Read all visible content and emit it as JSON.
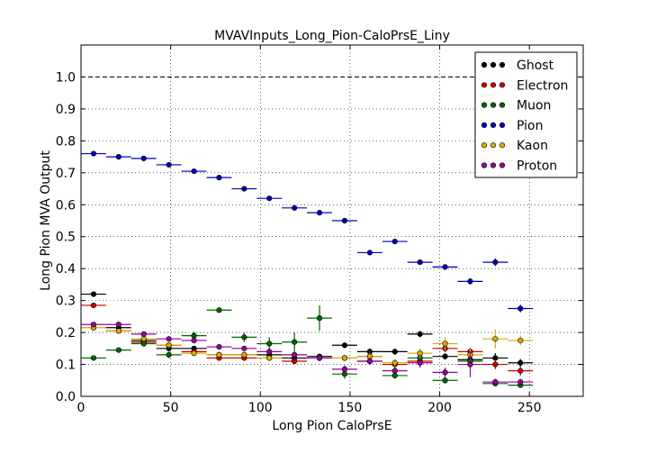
{
  "chart_data": {
    "type": "scatter",
    "title": "MVAVInputs_Long_Pion-CaloPrsE_Liny",
    "xlabel": "Long Pion CaloPrsE",
    "ylabel": "Long Pion MVA Output",
    "xlim": [
      0,
      280
    ],
    "ylim": [
      0,
      1.1
    ],
    "xticks": [
      0,
      50,
      100,
      150,
      200,
      250
    ],
    "xtick_labels": [
      "0",
      "50",
      "100",
      "150",
      "200",
      "250"
    ],
    "yticks": [
      0.0,
      0.1,
      0.2,
      0.3,
      0.4,
      0.5,
      0.6,
      0.7,
      0.8,
      0.9,
      1.0
    ],
    "ytick_labels": [
      "0.0",
      "0.1",
      "0.2",
      "0.3",
      "0.4",
      "0.5",
      "0.6",
      "0.7",
      "0.8",
      "0.9",
      "1.0"
    ],
    "grid": true,
    "legend_position": "top-right",
    "reference_line_y": 1.0,
    "bin_half_width": 7,
    "x": [
      7,
      21,
      35,
      49,
      63,
      77,
      91,
      105,
      119,
      133,
      147,
      161,
      175,
      189,
      203,
      217,
      231,
      245
    ],
    "series": [
      {
        "name": "Ghost",
        "color": "#000000",
        "values": [
          0.32,
          0.215,
          0.175,
          0.15,
          0.15,
          0.13,
          0.13,
          0.13,
          0.12,
          0.125,
          0.16,
          0.14,
          0.14,
          0.195,
          0.125,
          0.115,
          0.12,
          0.105
        ],
        "errors": [
          0.006,
          0.006,
          0.006,
          0.006,
          0.008,
          0.008,
          0.008,
          0.008,
          0.008,
          0.008,
          0.008,
          0.01,
          0.01,
          0.01,
          0.01,
          0.012,
          0.015,
          0.012
        ]
      },
      {
        "name": "Electron",
        "color": "#cc0000",
        "values": [
          0.285,
          0.205,
          0.17,
          0.16,
          0.14,
          0.12,
          0.12,
          0.12,
          0.11,
          0.12,
          0.12,
          0.11,
          0.1,
          0.11,
          0.15,
          0.14,
          0.1,
          0.08
        ],
        "errors": [
          0.006,
          0.006,
          0.006,
          0.006,
          0.008,
          0.008,
          0.008,
          0.008,
          0.008,
          0.008,
          0.008,
          0.01,
          0.01,
          0.01,
          0.012,
          0.012,
          0.015,
          0.015
        ]
      },
      {
        "name": "Muon",
        "color": "#006600",
        "values": [
          0.12,
          0.145,
          0.165,
          0.13,
          0.19,
          0.27,
          0.185,
          0.165,
          0.17,
          0.245,
          0.07,
          0.125,
          0.065,
          0.12,
          0.05,
          0.11,
          0.04,
          0.035
        ],
        "errors": [
          0.006,
          0.006,
          0.008,
          0.01,
          0.012,
          0.008,
          0.015,
          0.02,
          0.03,
          0.04,
          0.015,
          0.02,
          0.01,
          0.015,
          0.01,
          0.015,
          0.008,
          0.008
        ]
      },
      {
        "name": "Pion",
        "color": "#0000bb",
        "values": [
          0.76,
          0.75,
          0.745,
          0.725,
          0.705,
          0.685,
          0.65,
          0.62,
          0.59,
          0.575,
          0.55,
          0.45,
          0.485,
          0.42,
          0.405,
          0.36,
          0.42,
          0.275
        ],
        "errors": [
          0.004,
          0.004,
          0.004,
          0.004,
          0.005,
          0.005,
          0.005,
          0.005,
          0.006,
          0.006,
          0.006,
          0.008,
          0.008,
          0.008,
          0.008,
          0.01,
          0.012,
          0.012
        ]
      },
      {
        "name": "Kaon",
        "color": "#ddaa00",
        "values": [
          0.215,
          0.205,
          0.18,
          0.16,
          0.135,
          0.13,
          0.13,
          0.12,
          0.13,
          0.12,
          0.12,
          0.125,
          0.105,
          0.135,
          0.165,
          0.13,
          0.18,
          0.175
        ],
        "errors": [
          0.006,
          0.006,
          0.006,
          0.006,
          0.008,
          0.008,
          0.008,
          0.008,
          0.01,
          0.01,
          0.01,
          0.01,
          0.012,
          0.015,
          0.02,
          0.02,
          0.03,
          0.015
        ]
      },
      {
        "name": "Proton",
        "color": "#990099",
        "values": [
          0.225,
          0.225,
          0.195,
          0.18,
          0.175,
          0.155,
          0.15,
          0.14,
          0.13,
          0.12,
          0.085,
          0.11,
          0.08,
          0.105,
          0.075,
          0.1,
          0.045,
          0.045
        ],
        "errors": [
          0.006,
          0.006,
          0.006,
          0.006,
          0.008,
          0.008,
          0.008,
          0.008,
          0.01,
          0.01,
          0.012,
          0.012,
          0.012,
          0.015,
          0.015,
          0.04,
          0.01,
          0.01
        ]
      }
    ]
  }
}
